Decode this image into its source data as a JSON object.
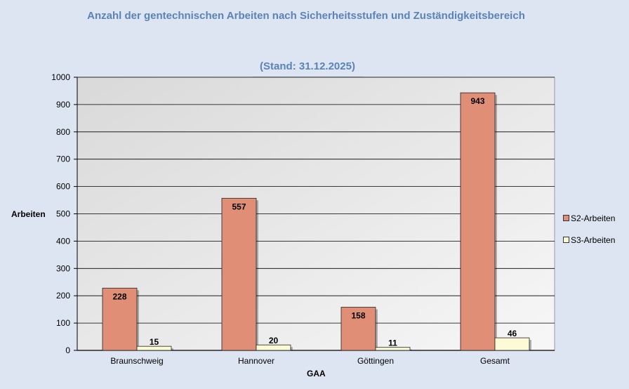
{
  "colors": {
    "s2": "#e08f76",
    "s3": "#fdfbd6",
    "title": "#5b83b8"
  },
  "chart_data": {
    "type": "bar",
    "title": "Anzahl der gentechnischen Arbeiten nach Sicherheitsstufen und Zuständigkeitsbereich",
    "subtitle": "(Stand: 31.12.2025)",
    "xlabel": "GAA",
    "ylabel": "Arbeiten",
    "ylim": [
      0,
      1000
    ],
    "yticks": [
      0,
      100,
      200,
      300,
      400,
      500,
      600,
      700,
      800,
      900,
      1000
    ],
    "grid": true,
    "legend_position": "right",
    "categories": [
      "Braunschweig",
      "Hannover",
      "Göttingen",
      "Gesamt"
    ],
    "series": [
      {
        "name": "S2-Arbeiten",
        "values": [
          228,
          557,
          158,
          943
        ]
      },
      {
        "name": "S3-Arbeiten",
        "values": [
          15,
          20,
          11,
          46
        ]
      }
    ]
  }
}
